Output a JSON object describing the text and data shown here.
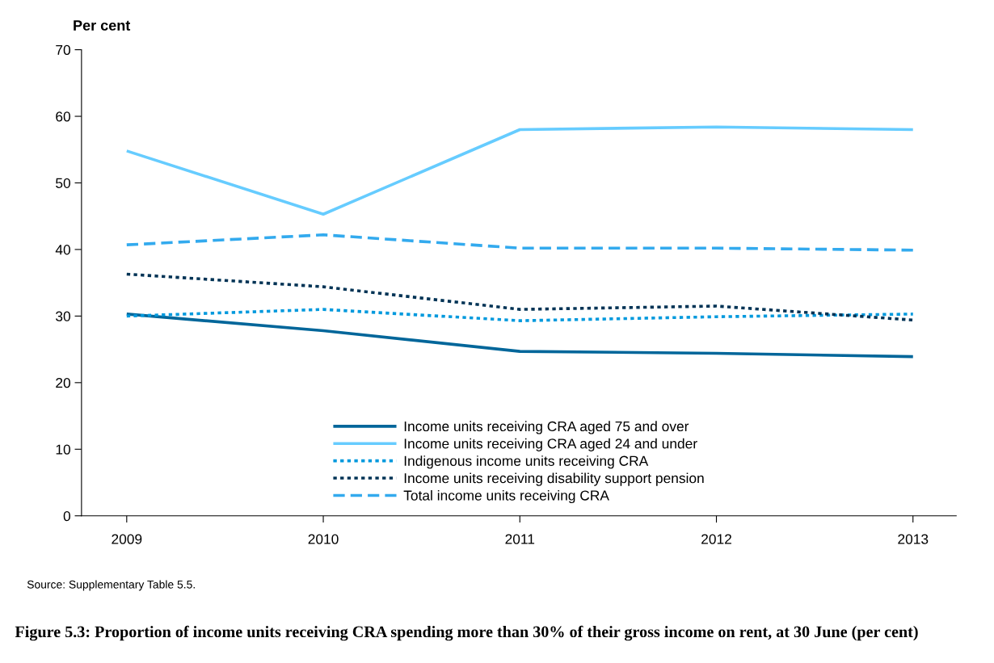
{
  "chart_data": {
    "type": "line",
    "title": "Figure 5.3: Proportion of income units receiving CRA spending more than 30% of their gross income on rent, at 30 June (per cent)",
    "ylabel": "Per cent",
    "annotations": [
      "Source: Supplementary Table 5.5."
    ],
    "categories": [
      "2009",
      "2010",
      "2011",
      "2012",
      "2013"
    ],
    "ylim": [
      0,
      70
    ],
    "yticks": [
      0,
      10,
      20,
      30,
      40,
      50,
      60,
      70
    ],
    "grid": false,
    "legend": "bottom",
    "marker": "none",
    "series": [
      {
        "name": "Income units receiving CRA aged 75 and over",
        "color": "#00669a",
        "line_style": "solid",
        "values": [
          30.3,
          27.8,
          24.7,
          24.4,
          23.9
        ]
      },
      {
        "name": "Income units receiving CRA aged 24 and under",
        "color": "#66ccff",
        "line_style": "solid",
        "values": [
          54.8,
          45.3,
          58.0,
          58.4,
          58.0
        ]
      },
      {
        "name": "Indigenous income units receiving CRA",
        "color": "#0099dd",
        "line_style": "dotted",
        "values": [
          30.0,
          31.0,
          29.3,
          29.9,
          30.3
        ]
      },
      {
        "name": "Income units receiving disability support pension",
        "color": "#003355",
        "line_style": "dotted",
        "values": [
          36.3,
          34.4,
          31.0,
          31.5,
          29.4
        ]
      },
      {
        "name": "Total income units receiving CRA",
        "color": "#33aaee",
        "line_style": "dashed",
        "values": [
          40.7,
          42.2,
          40.2,
          40.2,
          39.9
        ]
      }
    ]
  }
}
